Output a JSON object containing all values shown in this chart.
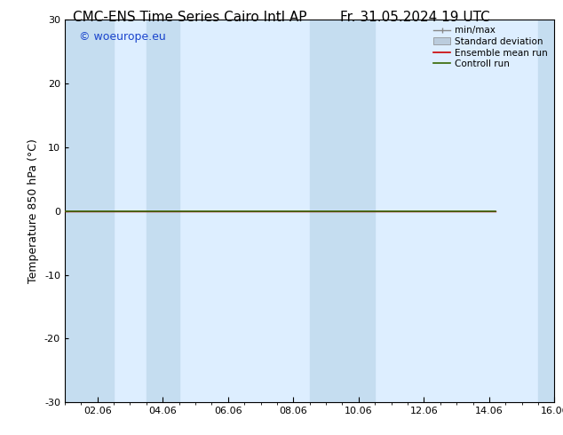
{
  "title_left": "CMC-ENS Time Series Cairo Intl AP",
  "title_right": "Fr. 31.05.2024 19 UTC",
  "ylabel": "Temperature 850 hPa (°C)",
  "ylim": [
    -30,
    30
  ],
  "yticks": [
    -30,
    -20,
    -10,
    0,
    10,
    20,
    30
  ],
  "xtick_labels": [
    "02.06",
    "04.06",
    "06.06",
    "08.06",
    "10.06",
    "12.06",
    "14.06",
    "16.06"
  ],
  "xtick_positions": [
    1,
    3,
    5,
    7,
    9,
    11,
    13,
    15
  ],
  "x_min": 0,
  "x_max": 15,
  "watermark": "© woeurope.eu",
  "watermark_color": "#1a44cc",
  "bg_color": "#ffffff",
  "plot_bg_color": "#ddeeff",
  "shade_color": "#c5ddf0",
  "shade_bands": [
    [
      0,
      1.5
    ],
    [
      2.5,
      3.5
    ],
    [
      7.5,
      9.5
    ],
    [
      14.5,
      15
    ]
  ],
  "line_x_end": 13.2,
  "line_y_value": 0.0,
  "line_color_control": "#336600",
  "line_color_mean": "#cc0000",
  "legend_entries": [
    "min/max",
    "Standard deviation",
    "Ensemble mean run",
    "Controll run"
  ],
  "legend_color_minmax": "#888888",
  "legend_color_std": "#bbccdd",
  "legend_color_mean": "#cc0000",
  "legend_color_ctrl": "#336600",
  "title_fontsize": 11,
  "axis_label_fontsize": 9,
  "tick_fontsize": 8,
  "watermark_fontsize": 9,
  "legend_fontsize": 7.5
}
